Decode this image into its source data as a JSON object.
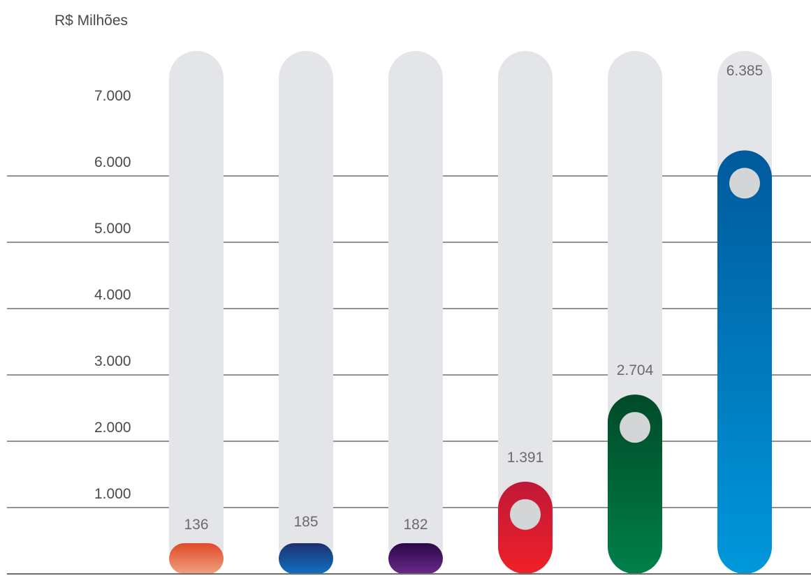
{
  "chart_data": {
    "type": "bar",
    "unit_label": "R$ Milhões",
    "categories": [
      "",
      "",
      "",
      "",
      "",
      ""
    ],
    "values": [
      136,
      185,
      182,
      1391,
      2704,
      6385
    ],
    "value_labels": [
      "136",
      "185",
      "182",
      "1.391",
      "2.704",
      "6.385"
    ],
    "ylim": [
      0,
      7000
    ],
    "yticks": [
      1000,
      2000,
      3000,
      4000,
      5000,
      6000,
      7000
    ],
    "ytick_labels": [
      "1.000",
      "2.000",
      "3.000",
      "4.000",
      "5.000",
      "6.000",
      "7.000"
    ],
    "grid": true,
    "bar_colors": [
      [
        "#f0a080",
        "#e04a28"
      ],
      [
        "#1070c0",
        "#1e3070"
      ],
      [
        "#6a2888",
        "#2a0848"
      ],
      [
        "#f02028",
        "#c01838"
      ],
      [
        "#00804a",
        "#004a28"
      ],
      [
        "#0098dc",
        "#005a9c"
      ]
    ],
    "track_color": "#e3e5e8",
    "marker_color": "#d4d5d7",
    "grid_color": "#6e6e6e"
  }
}
